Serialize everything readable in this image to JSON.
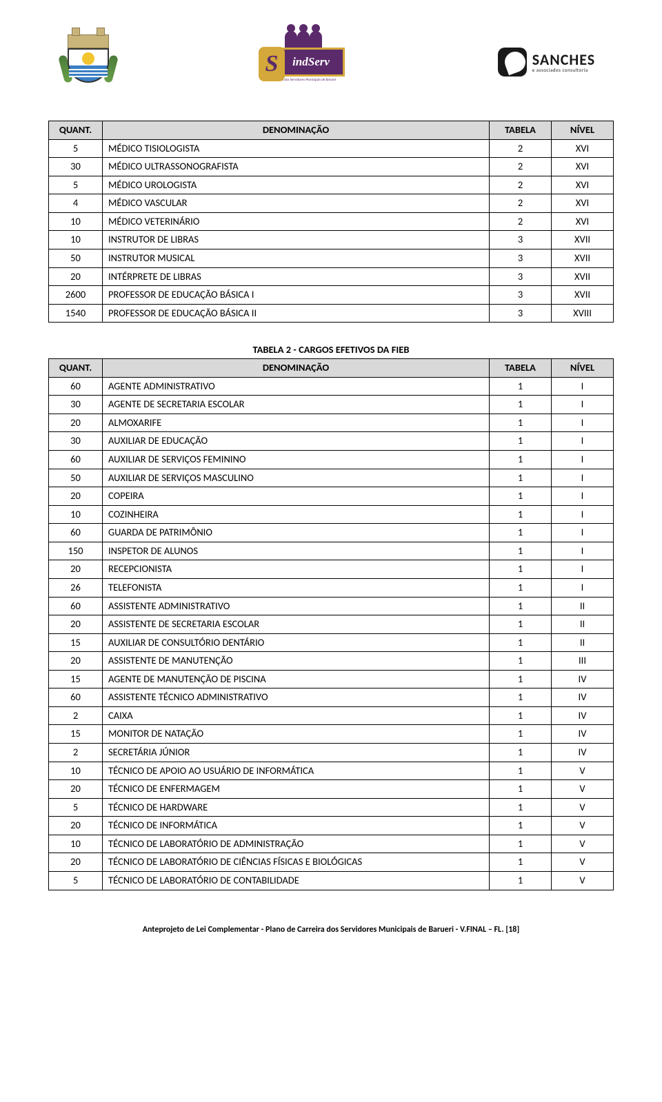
{
  "table1": {
    "headers": {
      "quant": "QUANT.",
      "denom": "DENOMINAÇÃO",
      "tabela": "TABELA",
      "nivel": "NÍVEL"
    },
    "rows": [
      {
        "q": "5",
        "d": "MÉDICO TISIOLOGISTA",
        "t": "2",
        "n": "XVI"
      },
      {
        "q": "30",
        "d": "MÉDICO ULTRASSONOGRAFISTA",
        "t": "2",
        "n": "XVI"
      },
      {
        "q": "5",
        "d": "MÉDICO UROLOGISTA",
        "t": "2",
        "n": "XVI"
      },
      {
        "q": "4",
        "d": "MÉDICO VASCULAR",
        "t": "2",
        "n": "XVI"
      },
      {
        "q": "10",
        "d": "MÉDICO VETERINÁRIO",
        "t": "2",
        "n": "XVI"
      },
      {
        "q": "10",
        "d": "INSTRUTOR DE LIBRAS",
        "t": "3",
        "n": "XVII"
      },
      {
        "q": "50",
        "d": "INSTRUTOR MUSICAL",
        "t": "3",
        "n": "XVII"
      },
      {
        "q": "20",
        "d": "INTÉRPRETE DE LIBRAS",
        "t": "3",
        "n": "XVII"
      },
      {
        "q": "2600",
        "d": "PROFESSOR DE EDUCAÇÃO BÁSICA I",
        "t": "3",
        "n": "XVII"
      },
      {
        "q": "1540",
        "d": "PROFESSOR DE EDUCAÇÃO BÁSICA II",
        "t": "3",
        "n": "XVIII"
      }
    ]
  },
  "table2": {
    "title": "TABELA 2 - CARGOS EFETIVOS DA FIEB",
    "headers": {
      "quant": "QUANT.",
      "denom": "DENOMINAÇÃO",
      "tabela": "TABELA",
      "nivel": "NÍVEL"
    },
    "rows": [
      {
        "q": "60",
        "d": "AGENTE ADMINISTRATIVO",
        "t": "1",
        "n": "I"
      },
      {
        "q": "30",
        "d": "AGENTE DE SECRETARIA ESCOLAR",
        "t": "1",
        "n": "I"
      },
      {
        "q": "20",
        "d": "ALMOXARIFE",
        "t": "1",
        "n": "I"
      },
      {
        "q": "30",
        "d": "AUXILIAR DE EDUCAÇÃO",
        "t": "1",
        "n": "I"
      },
      {
        "q": "60",
        "d": "AUXILIAR DE SERVIÇOS FEMININO",
        "t": "1",
        "n": "I"
      },
      {
        "q": "50",
        "d": "AUXILIAR DE SERVIÇOS MASCULINO",
        "t": "1",
        "n": "I"
      },
      {
        "q": "20",
        "d": "COPEIRA",
        "t": "1",
        "n": "I"
      },
      {
        "q": "10",
        "d": "COZINHEIRA",
        "t": "1",
        "n": "I"
      },
      {
        "q": "60",
        "d": "GUARDA DE PATRIMÔNIO",
        "t": "1",
        "n": "I"
      },
      {
        "q": "150",
        "d": "INSPETOR DE ALUNOS",
        "t": "1",
        "n": "I"
      },
      {
        "q": "20",
        "d": "RECEPCIONISTA",
        "t": "1",
        "n": "I"
      },
      {
        "q": "26",
        "d": "TELEFONISTA",
        "t": "1",
        "n": "I"
      },
      {
        "q": "60",
        "d": "ASSISTENTE ADMINISTRATIVO",
        "t": "1",
        "n": "II"
      },
      {
        "q": "20",
        "d": "ASSISTENTE DE SECRETARIA ESCOLAR",
        "t": "1",
        "n": "II"
      },
      {
        "q": "15",
        "d": "AUXILIAR DE CONSULTÓRIO DENTÁRIO",
        "t": "1",
        "n": "II"
      },
      {
        "q": "20",
        "d": "ASSISTENTE DE MANUTENÇÃO",
        "t": "1",
        "n": "III"
      },
      {
        "q": "15",
        "d": "AGENTE DE MANUTENÇÃO DE PISCINA",
        "t": "1",
        "n": "IV"
      },
      {
        "q": "60",
        "d": "ASSISTENTE TÉCNICO ADMINISTRATIVO",
        "t": "1",
        "n": "IV"
      },
      {
        "q": "2",
        "d": "CAIXA",
        "t": "1",
        "n": "IV"
      },
      {
        "q": "15",
        "d": "MONITOR DE NATAÇÃO",
        "t": "1",
        "n": "IV"
      },
      {
        "q": "2",
        "d": "SECRETÁRIA JÚNIOR",
        "t": "1",
        "n": "IV"
      },
      {
        "q": "10",
        "d": "TÉCNICO DE APOIO AO USUÁRIO DE INFORMÁTICA",
        "t": "1",
        "n": "V"
      },
      {
        "q": "20",
        "d": "TÉCNICO DE ENFERMAGEM",
        "t": "1",
        "n": "V"
      },
      {
        "q": "5",
        "d": "TÉCNICO DE HARDWARE",
        "t": "1",
        "n": "V"
      },
      {
        "q": "20",
        "d": "TÉCNICO DE INFORMÁTICA",
        "t": "1",
        "n": "V"
      },
      {
        "q": "10",
        "d": "TÉCNICO DE LABORATÓRIO DE ADMINISTRAÇÃO",
        "t": "1",
        "n": "V"
      },
      {
        "q": "20",
        "d": "TÉCNICO DE LABORATÓRIO DE CIÊNCIAS FÍSICAS E BIOLÓGICAS",
        "t": "1",
        "n": "V"
      },
      {
        "q": "5",
        "d": "TÉCNICO DE LABORATÓRIO DE CONTABILIDADE",
        "t": "1",
        "n": "V"
      }
    ]
  },
  "logos": {
    "sindserv_text": "indServ",
    "sindserv_s": "S",
    "sindserv_sub": "Sindicato dos Servidores Municipais de Barueri",
    "sanches_name": "SANCHES",
    "sanches_sub": "e associados consultoria"
  },
  "footer": "Anteprojeto de Lei Complementar - Plano de Carreira dos Servidores Municipais de Barueri - V.FINAL – FL. [18]"
}
